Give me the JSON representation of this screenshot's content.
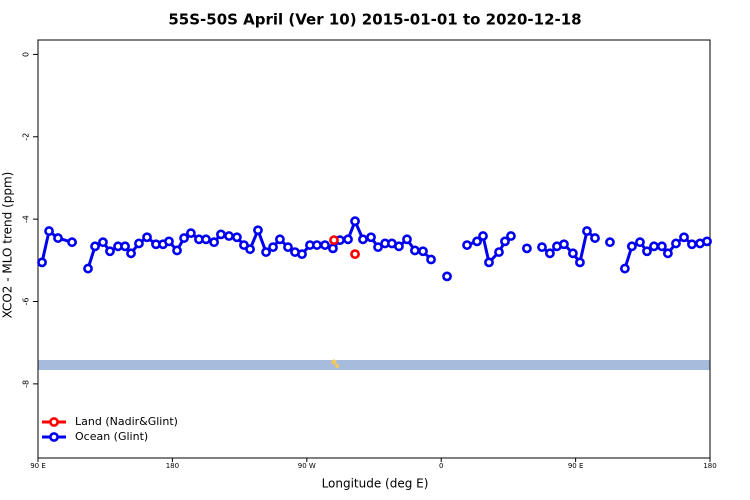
{
  "chart_data": {
    "type": "line",
    "title": "55S-50S April (Ver 10)   2015-01-01 to 2020-12-18",
    "x_label": "Longitude (deg E)",
    "y_label": "XCO2 - MLO trend (ppm)",
    "xlim": [
      90,
      540
    ],
    "xticks": [
      {
        "value": 90,
        "label": "90 E"
      },
      {
        "value": 180,
        "label": "180"
      },
      {
        "value": 270,
        "label": "90 W"
      },
      {
        "value": 360,
        "label": "0"
      },
      {
        "value": 450,
        "label": "90 E"
      },
      {
        "value": 540,
        "label": "180"
      }
    ],
    "ylim": [
      -9.8,
      0.35
    ],
    "yticks": [
      0,
      -2,
      -4,
      -6,
      -8
    ],
    "legend": "bottom-left",
    "series": [
      {
        "name": "Land (Nadir&Glint)",
        "color": "#ff0000",
        "x": [
          288.2,
          295,
          302.3
        ],
        "values": [
          -4.51,
          null,
          -4.85
        ]
      },
      {
        "name": "Ocean (Glint)",
        "color": "#0000ee",
        "x": [
          92.7,
          97.4,
          103.4,
          112.8,
          117.5,
          123.5,
          128.2,
          133.5,
          138.2,
          143.6,
          148.3,
          152.3,
          157.6,
          163,
          169,
          173.7,
          177.7,
          183.1,
          187.8,
          192.4,
          197.8,
          202.5,
          207.9,
          212.5,
          217.9,
          223.2,
          227.9,
          232,
          237.3,
          242.7,
          247.4,
          252,
          257.4,
          262.1,
          266.8,
          272.1,
          276.8,
          282.2,
          287.5,
          292.2,
          297.6,
          302.3,
          307.6,
          313,
          317.7,
          322.4,
          327,
          331.7,
          337.1,
          342.4,
          347.8,
          353.2,
          357.5,
          363.9,
          368,
          377.3,
          384,
          388,
          392,
          398.7,
          402.7,
          406.7,
          412,
          417.4,
          422,
          427.5,
          432.8,
          437.5,
          442.2,
          448.2,
          452.9,
          457.6,
          463,
          467,
          473,
          477,
          483,
          487.7,
          493.1,
          497.8,
          502.5,
          507.8,
          511.8,
          517.2,
          522.6,
          527.9,
          533.3,
          538
        ],
        "values": [
          -5.05,
          -4.29,
          -4.46,
          -4.56,
          null,
          -5.2,
          -4.66,
          -4.56,
          -4.78,
          -4.66,
          -4.66,
          -4.83,
          -4.59,
          -4.44,
          -4.61,
          -4.61,
          -4.54,
          -4.76,
          -4.46,
          -4.34,
          -4.49,
          -4.49,
          -4.56,
          -4.37,
          -4.41,
          -4.44,
          -4.63,
          -4.73,
          -4.27,
          -4.8,
          -4.68,
          -4.49,
          -4.68,
          -4.8,
          -4.85,
          -4.63,
          -4.63,
          -4.63,
          -4.71,
          -4.51,
          -4.49,
          -4.05,
          -4.49,
          -4.44,
          -4.68,
          -4.59,
          -4.59,
          -4.66,
          -4.49,
          -4.76,
          -4.78,
          -4.98,
          null,
          -5.39,
          null,
          -4.63,
          -4.54,
          -4.41,
          -5.05,
          -4.8,
          -4.54,
          -4.41,
          null,
          -4.71,
          null,
          -4.68,
          -4.83,
          -4.66,
          -4.61,
          -4.83,
          -5.05,
          -4.29,
          -4.46,
          null,
          -4.56,
          null,
          -5.2,
          -4.66,
          -4.56,
          -4.78,
          -4.66,
          -4.66,
          -4.83,
          -4.59,
          -4.44,
          -4.61,
          -4.59,
          -4.54
        ]
      }
    ]
  }
}
